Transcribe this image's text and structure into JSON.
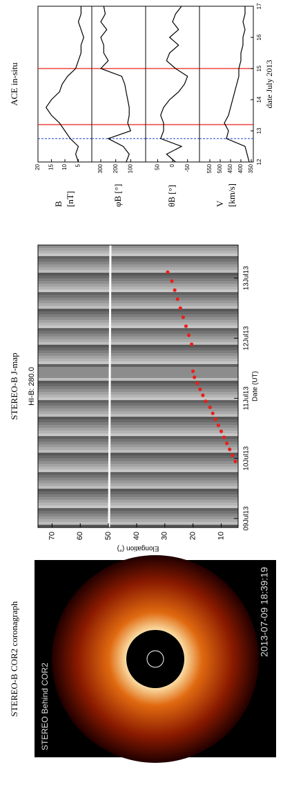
{
  "chart_data": [
    {
      "type": "image",
      "title": "STEREO-B COR2 coronagraph",
      "image_labels": [
        "STEREO Behind COR2",
        "2013-07-09 18:39:19"
      ]
    },
    {
      "type": "scatter",
      "title": "STEREO-B J-map",
      "plot_title": "HI-B: 280.0",
      "x_label": "Date (UT)",
      "y_label": "Elongation (°)",
      "xlim": [
        -0.15,
        4.55
      ],
      "xticks": [
        {
          "value": 0,
          "label": "09Jul13"
        },
        {
          "value": 1,
          "label": "10Jul13"
        },
        {
          "value": 2,
          "label": "11Jul13"
        },
        {
          "value": 3,
          "label": "12Jul13"
        },
        {
          "value": 4,
          "label": "13Jul13"
        }
      ],
      "ylim": [
        4,
        75
      ],
      "yticks": [
        10,
        20,
        30,
        40,
        50,
        60,
        70
      ],
      "x": [
        0.95,
        1.05,
        1.15,
        1.25,
        1.35,
        1.45,
        1.55,
        1.65,
        1.75,
        1.85,
        1.95,
        2.05,
        2.15,
        2.25,
        2.35,
        2.45,
        2.9,
        3.05,
        3.2,
        3.35,
        3.5,
        3.65,
        3.8,
        3.95,
        4.1
      ],
      "values": [
        5,
        6,
        7,
        8,
        9,
        10,
        11,
        12,
        13,
        14,
        15.5,
        16.5,
        17.5,
        18.5,
        19.5,
        20,
        20.5,
        21.5,
        22.5,
        23.5,
        24.5,
        25.5,
        26.5,
        27.5,
        29
      ],
      "color": "#e8201a"
    },
    {
      "type": "line",
      "title": "ACE in-situ",
      "x_label": "date July 2013",
      "xlim": [
        12,
        17
      ],
      "xticks": [
        12,
        13,
        14,
        15,
        16,
        17
      ],
      "x": [
        12,
        12.25,
        12.5,
        12.75,
        13,
        13.25,
        13.5,
        13.75,
        14,
        14.25,
        14.5,
        14.75,
        15,
        15.25,
        15.5,
        15.75,
        16,
        16.25,
        16.5,
        16.75,
        17
      ],
      "color": "#000000",
      "red_lines": [
        13.2,
        15.0
      ],
      "red_color": "#e8201a",
      "blue_dashed_lines": [
        12.75
      ],
      "blue_color": "#1a3cc8",
      "panels": [
        {
          "name": "B",
          "unit": "[nT]",
          "ylim": [
            0,
            20
          ],
          "yticks": [
            5,
            10,
            15,
            20
          ],
          "values": [
            5,
            6,
            5,
            8,
            10,
            12,
            15,
            17,
            15,
            12,
            11,
            9,
            6,
            5,
            4,
            4,
            3,
            4,
            5,
            4,
            4
          ]
        },
        {
          "name": "φB [°]",
          "ylim": [
            0,
            360
          ],
          "yticks": [
            100,
            200,
            300
          ],
          "values": [
            130,
            110,
            150,
            250,
            100,
            120,
            110,
            110,
            120,
            130,
            140,
            160,
            300,
            250,
            280,
            280,
            300,
            260,
            300,
            270,
            280
          ]
        },
        {
          "name": "θB [°]",
          "ylim": [
            -90,
            90
          ],
          "yticks": [
            -50,
            0,
            50
          ],
          "values": [
            -10,
            20,
            -30,
            40,
            30,
            30,
            40,
            30,
            10,
            -20,
            -40,
            -50,
            -10,
            20,
            10,
            -20,
            10,
            -20,
            0,
            -10,
            -30
          ]
        },
        {
          "name": "V",
          "unit": "[km/s]",
          "ylim": [
            340,
            600
          ],
          "yticks": [
            350,
            400,
            450,
            500,
            550
          ],
          "values": [
            360,
            370,
            380,
            470,
            460,
            480,
            460,
            450,
            440,
            430,
            420,
            410,
            410,
            400,
            400,
            390,
            390,
            380,
            390,
            380,
            380
          ]
        }
      ]
    }
  ]
}
